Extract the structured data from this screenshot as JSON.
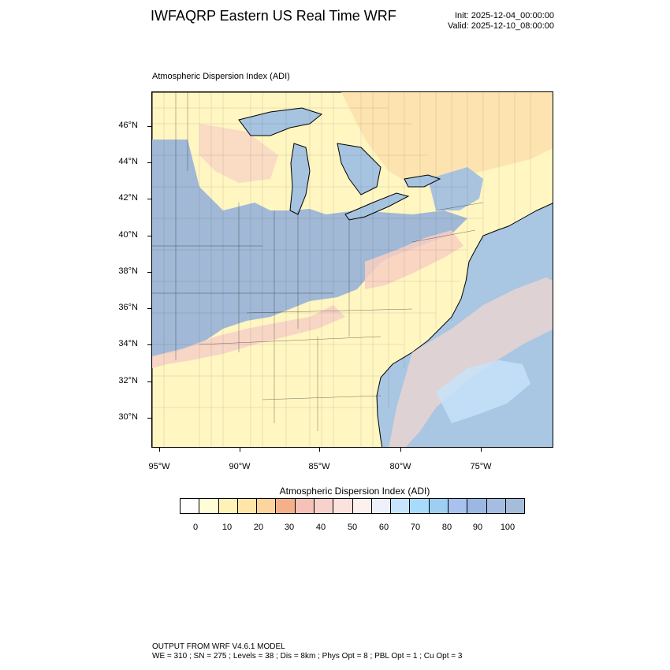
{
  "header": {
    "title": "IWFAQRP Eastern US Real Time WRF",
    "init": "Init: 2025-12-04_00:00:00",
    "valid": "Valid: 2025-12-10_08:00:00"
  },
  "map": {
    "subtitle": "Atmospheric Dispersion Index   (ADI)",
    "lat_labels": [
      "46°N",
      "44°N",
      "42°N",
      "40°N",
      "38°N",
      "36°N",
      "34°N",
      "32°N",
      "30°N"
    ],
    "lon_labels": [
      "95°W",
      "90°W",
      "85°W",
      "80°W",
      "75°W"
    ],
    "region": "Eastern United States",
    "colors": {
      "water": "#a6c4e0",
      "low": "#fffbc8",
      "mid": "#fbd7c2",
      "high": "#9db7d6",
      "border": "#000000"
    }
  },
  "colorbar": {
    "title": "Atmospheric Dispersion Index  (ADI)",
    "labels": [
      "0",
      "10",
      "20",
      "30",
      "40",
      "50",
      "60",
      "70",
      "80",
      "90",
      "100"
    ],
    "colors": [
      "#ffffff",
      "#fffdd8",
      "#fff2b8",
      "#ffe6a6",
      "#fdd49c",
      "#f4b088",
      "#f6c1b6",
      "#f7d2ca",
      "#fbe2dc",
      "#fdf1ee",
      "#eef0fb",
      "#c6e4fb",
      "#a8dafb",
      "#9ecff3",
      "#a7c2ee",
      "#9bb8e4",
      "#a5bde0",
      "#a5bdd9"
    ]
  },
  "footer": {
    "line1": "OUTPUT FROM WRF V4.6.1 MODEL",
    "line2": "WE = 310 ; SN = 275 ; Levels = 38 ; Dis = 8km ; Phys Opt = 8 ; PBL Opt = 1 ; Cu Opt = 3"
  }
}
